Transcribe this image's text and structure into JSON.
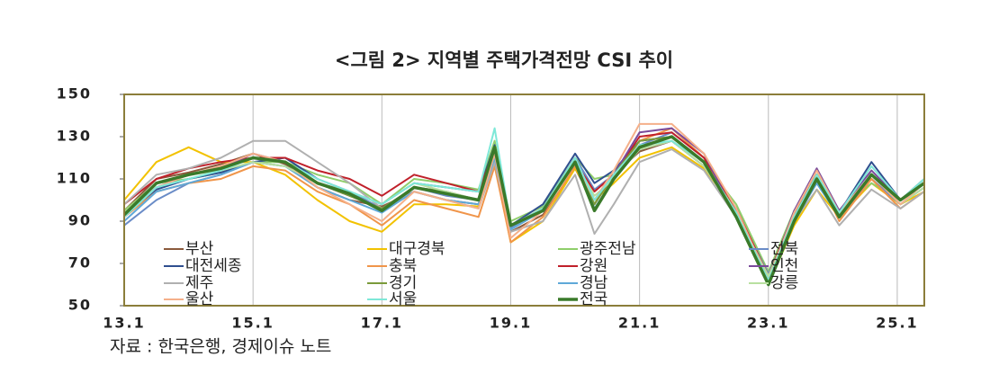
{
  "chart_data": {
    "type": "line",
    "title": "<그림 2> 지역별 주택가격전망 CSI 추이",
    "source": "자료 : 한국은행, 경제이슈 노트",
    "x": [
      2013,
      2013.5,
      2014,
      2014.5,
      2015,
      2015.5,
      2016,
      2016.5,
      2017,
      2017.5,
      2018,
      2018.5,
      2018.75,
      2019,
      2019.5,
      2020,
      2020.3,
      2020.6,
      2021,
      2021.5,
      2022,
      2022.5,
      2023,
      2023.4,
      2023.75,
      2024.1,
      2024.6,
      2025.05,
      2025.42
    ],
    "xlim": [
      2013,
      2025.42
    ],
    "xticks": [
      {
        "value": 2013,
        "label": "13.1"
      },
      {
        "value": 2015,
        "label": "15.1"
      },
      {
        "value": 2017,
        "label": "17.1"
      },
      {
        "value": 2019,
        "label": "19.1"
      },
      {
        "value": 2021,
        "label": "21.1"
      },
      {
        "value": 2023,
        "label": "23.1"
      },
      {
        "value": 2025,
        "label": "25.1"
      }
    ],
    "ylim": [
      50,
      150
    ],
    "yticks": [
      50,
      70,
      90,
      110,
      130,
      150
    ],
    "grid": true,
    "series": [
      {
        "name": "부산",
        "color": "#8b5a3c",
        "values": [
          95,
          110,
          113,
          117,
          122,
          117,
          106,
          100,
          97,
          104,
          100,
          98,
          120,
          85,
          93,
          115,
          98,
          112,
          123,
          128,
          116,
          95,
          62,
          92,
          112,
          95,
          110,
          98,
          106
        ]
      },
      {
        "name": "대구경북",
        "color": "#f2c200",
        "values": [
          100,
          118,
          125,
          118,
          118,
          112,
          100,
          90,
          85,
          98,
          98,
          97,
          118,
          80,
          90,
          115,
          100,
          108,
          120,
          125,
          115,
          95,
          60,
          88,
          105,
          92,
          108,
          98,
          104
        ]
      },
      {
        "name": "광주전남",
        "color": "#8fce6b",
        "values": [
          95,
          108,
          110,
          113,
          118,
          118,
          112,
          108,
          98,
          110,
          108,
          105,
          128,
          90,
          97,
          120,
          110,
          112,
          125,
          130,
          118,
          98,
          66,
          95,
          110,
          95,
          108,
          100,
          110
        ]
      },
      {
        "name": "전북",
        "color": "#6a8cc7",
        "values": [
          88,
          100,
          108,
          112,
          118,
          116,
          108,
          104,
          96,
          106,
          102,
          100,
          122,
          87,
          96,
          120,
          105,
          112,
          126,
          132,
          120,
          95,
          65,
          92,
          108,
          92,
          110,
          98,
          106
        ]
      },
      {
        "name": "대전세종",
        "color": "#2f4f8f",
        "values": [
          92,
          105,
          110,
          113,
          118,
          120,
          110,
          104,
          98,
          108,
          106,
          104,
          126,
          88,
          98,
          122,
          108,
          114,
          128,
          130,
          118,
          96,
          62,
          93,
          112,
          94,
          118,
          100,
          108
        ]
      },
      {
        "name": "충북",
        "color": "#f0954a",
        "values": [
          92,
          104,
          108,
          110,
          116,
          114,
          104,
          98,
          88,
          100,
          96,
          92,
          116,
          80,
          92,
          116,
          100,
          110,
          128,
          134,
          120,
          94,
          62,
          90,
          112,
          90,
          110,
          96,
          104
        ]
      },
      {
        "name": "강원",
        "color": "#c0202a",
        "values": [
          98,
          110,
          115,
          118,
          120,
          120,
          114,
          110,
          102,
          112,
          108,
          104,
          124,
          88,
          96,
          118,
          104,
          112,
          130,
          132,
          120,
          96,
          64,
          94,
          112,
          94,
          112,
          100,
          108
        ]
      },
      {
        "name": "인천",
        "color": "#7a4a9a",
        "values": [
          92,
          106,
          112,
          115,
          122,
          118,
          108,
          102,
          96,
          106,
          104,
          100,
          124,
          88,
          96,
          120,
          100,
          112,
          132,
          134,
          122,
          92,
          62,
          95,
          115,
          95,
          114,
          100,
          110
        ]
      },
      {
        "name": "제주",
        "color": "#b0b0b0",
        "values": [
          98,
          112,
          115,
          120,
          128,
          128,
          118,
          108,
          96,
          104,
          100,
          96,
          118,
          85,
          90,
          112,
          84,
          98,
          118,
          124,
          114,
          92,
          64,
          90,
          105,
          88,
          105,
          96,
          104
        ]
      },
      {
        "name": "경기",
        "color": "#7a9a3a",
        "values": [
          94,
          108,
          112,
          115,
          120,
          118,
          108,
          102,
          96,
          106,
          104,
          100,
          124,
          88,
          96,
          120,
          98,
          112,
          128,
          130,
          118,
          92,
          60,
          92,
          112,
          94,
          112,
          100,
          108
        ]
      },
      {
        "name": "경남",
        "color": "#5fa8d8",
        "values": [
          90,
          104,
          108,
          112,
          118,
          116,
          106,
          100,
          94,
          104,
          100,
          98,
          120,
          86,
          95,
          118,
          96,
          110,
          124,
          128,
          116,
          94,
          62,
          90,
          108,
          92,
          112,
          98,
          106
        ]
      },
      {
        "name": "강릉",
        "color": "#b8e0a0",
        "values": [
          94,
          108,
          112,
          114,
          118,
          116,
          108,
          104,
          98,
          108,
          104,
          100,
          122,
          88,
          96,
          118,
          102,
          110,
          124,
          128,
          116,
          94,
          64,
          92,
          110,
          92,
          112,
          98,
          106
        ]
      },
      {
        "name": "울산",
        "color": "#f5b08a",
        "values": [
          92,
          106,
          112,
          116,
          122,
          118,
          106,
          98,
          90,
          104,
          100,
          96,
          122,
          82,
          95,
          118,
          100,
          114,
          136,
          136,
          122,
          96,
          62,
          94,
          114,
          94,
          112,
          98,
          108
        ]
      },
      {
        "name": "서울",
        "color": "#7ee8d8",
        "values": [
          92,
          106,
          110,
          114,
          120,
          118,
          110,
          104,
          98,
          108,
          106,
          104,
          134,
          88,
          96,
          120,
          100,
          112,
          126,
          128,
          118,
          94,
          62,
          92,
          112,
          94,
          116,
          100,
          110
        ]
      },
      {
        "name": "전국",
        "color": "#3a7a2a",
        "values": [
          93,
          108,
          112,
          115,
          120,
          118,
          108,
          103,
          95,
          106,
          103,
          100,
          125,
          88,
          95,
          118,
          95,
          110,
          125,
          130,
          118,
          92,
          60,
          90,
          110,
          92,
          112,
          100,
          108
        ]
      }
    ]
  }
}
